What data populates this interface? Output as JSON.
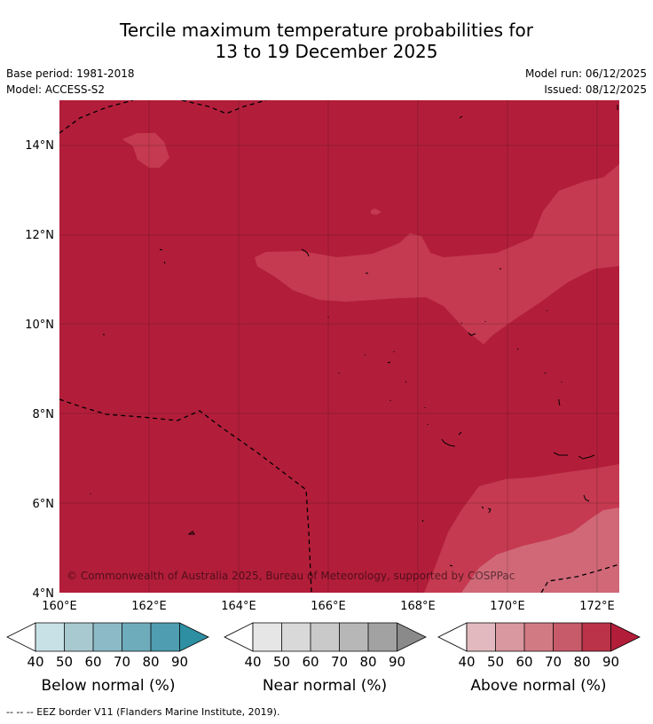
{
  "title": {
    "line1": "Tercile maximum temperature probabilities for",
    "line2": "13 to 19 December 2025"
  },
  "meta": {
    "base_period": "Base period: 1981-2018",
    "model": "Model: ACCESS-S2",
    "model_run": "Model run: 06/12/2025",
    "issued": "Issued: 08/12/2025"
  },
  "map": {
    "lat_labels": [
      "14°N",
      "12°N",
      "10°N",
      "8°N",
      "6°N",
      "4°N"
    ],
    "lat_values": [
      14,
      12,
      10,
      8,
      6,
      4
    ],
    "lon_labels": [
      "160°E",
      "162°E",
      "164°E",
      "166°E",
      "168°E",
      "170°E",
      "172°E"
    ],
    "lon_values": [
      160,
      162,
      164,
      166,
      168,
      170,
      172
    ],
    "lon_range": [
      160,
      172.5
    ],
    "lat_range": [
      4,
      15
    ],
    "copyright": "© Commonwealth of Australia 2025, Bureau of Meteorology, supported by COSPPac",
    "colors": {
      "above_80_90": "#b21e3a",
      "above_70_80": "#c53a50",
      "above_60_70": "#d06878"
    }
  },
  "colorbars": [
    {
      "title": "Below normal (%)",
      "ticks": [
        "40",
        "50",
        "60",
        "70",
        "80",
        "90"
      ],
      "colors": [
        "#c8e1e7",
        "#a8c9cf",
        "#8cbbc7",
        "#6eacbc",
        "#4f9db0",
        "#2e8fa3"
      ]
    },
    {
      "title": "Near normal (%)",
      "ticks": [
        "40",
        "50",
        "60",
        "70",
        "80",
        "90"
      ],
      "colors": [
        "#e6e6e6",
        "#d9d9d9",
        "#c9c9c9",
        "#b7b7b7",
        "#a2a2a2",
        "#8a8a8a"
      ]
    },
    {
      "title": "Above normal (%)",
      "ticks": [
        "40",
        "50",
        "60",
        "70",
        "80",
        "90"
      ],
      "colors": [
        "#e2b9bf",
        "#d9979f",
        "#d27a84",
        "#c75b69",
        "#bb3349",
        "#b21e3a"
      ]
    }
  ],
  "footer": "--  --  -- EEZ border V11 (Flanders Marine Institute, 2019)."
}
